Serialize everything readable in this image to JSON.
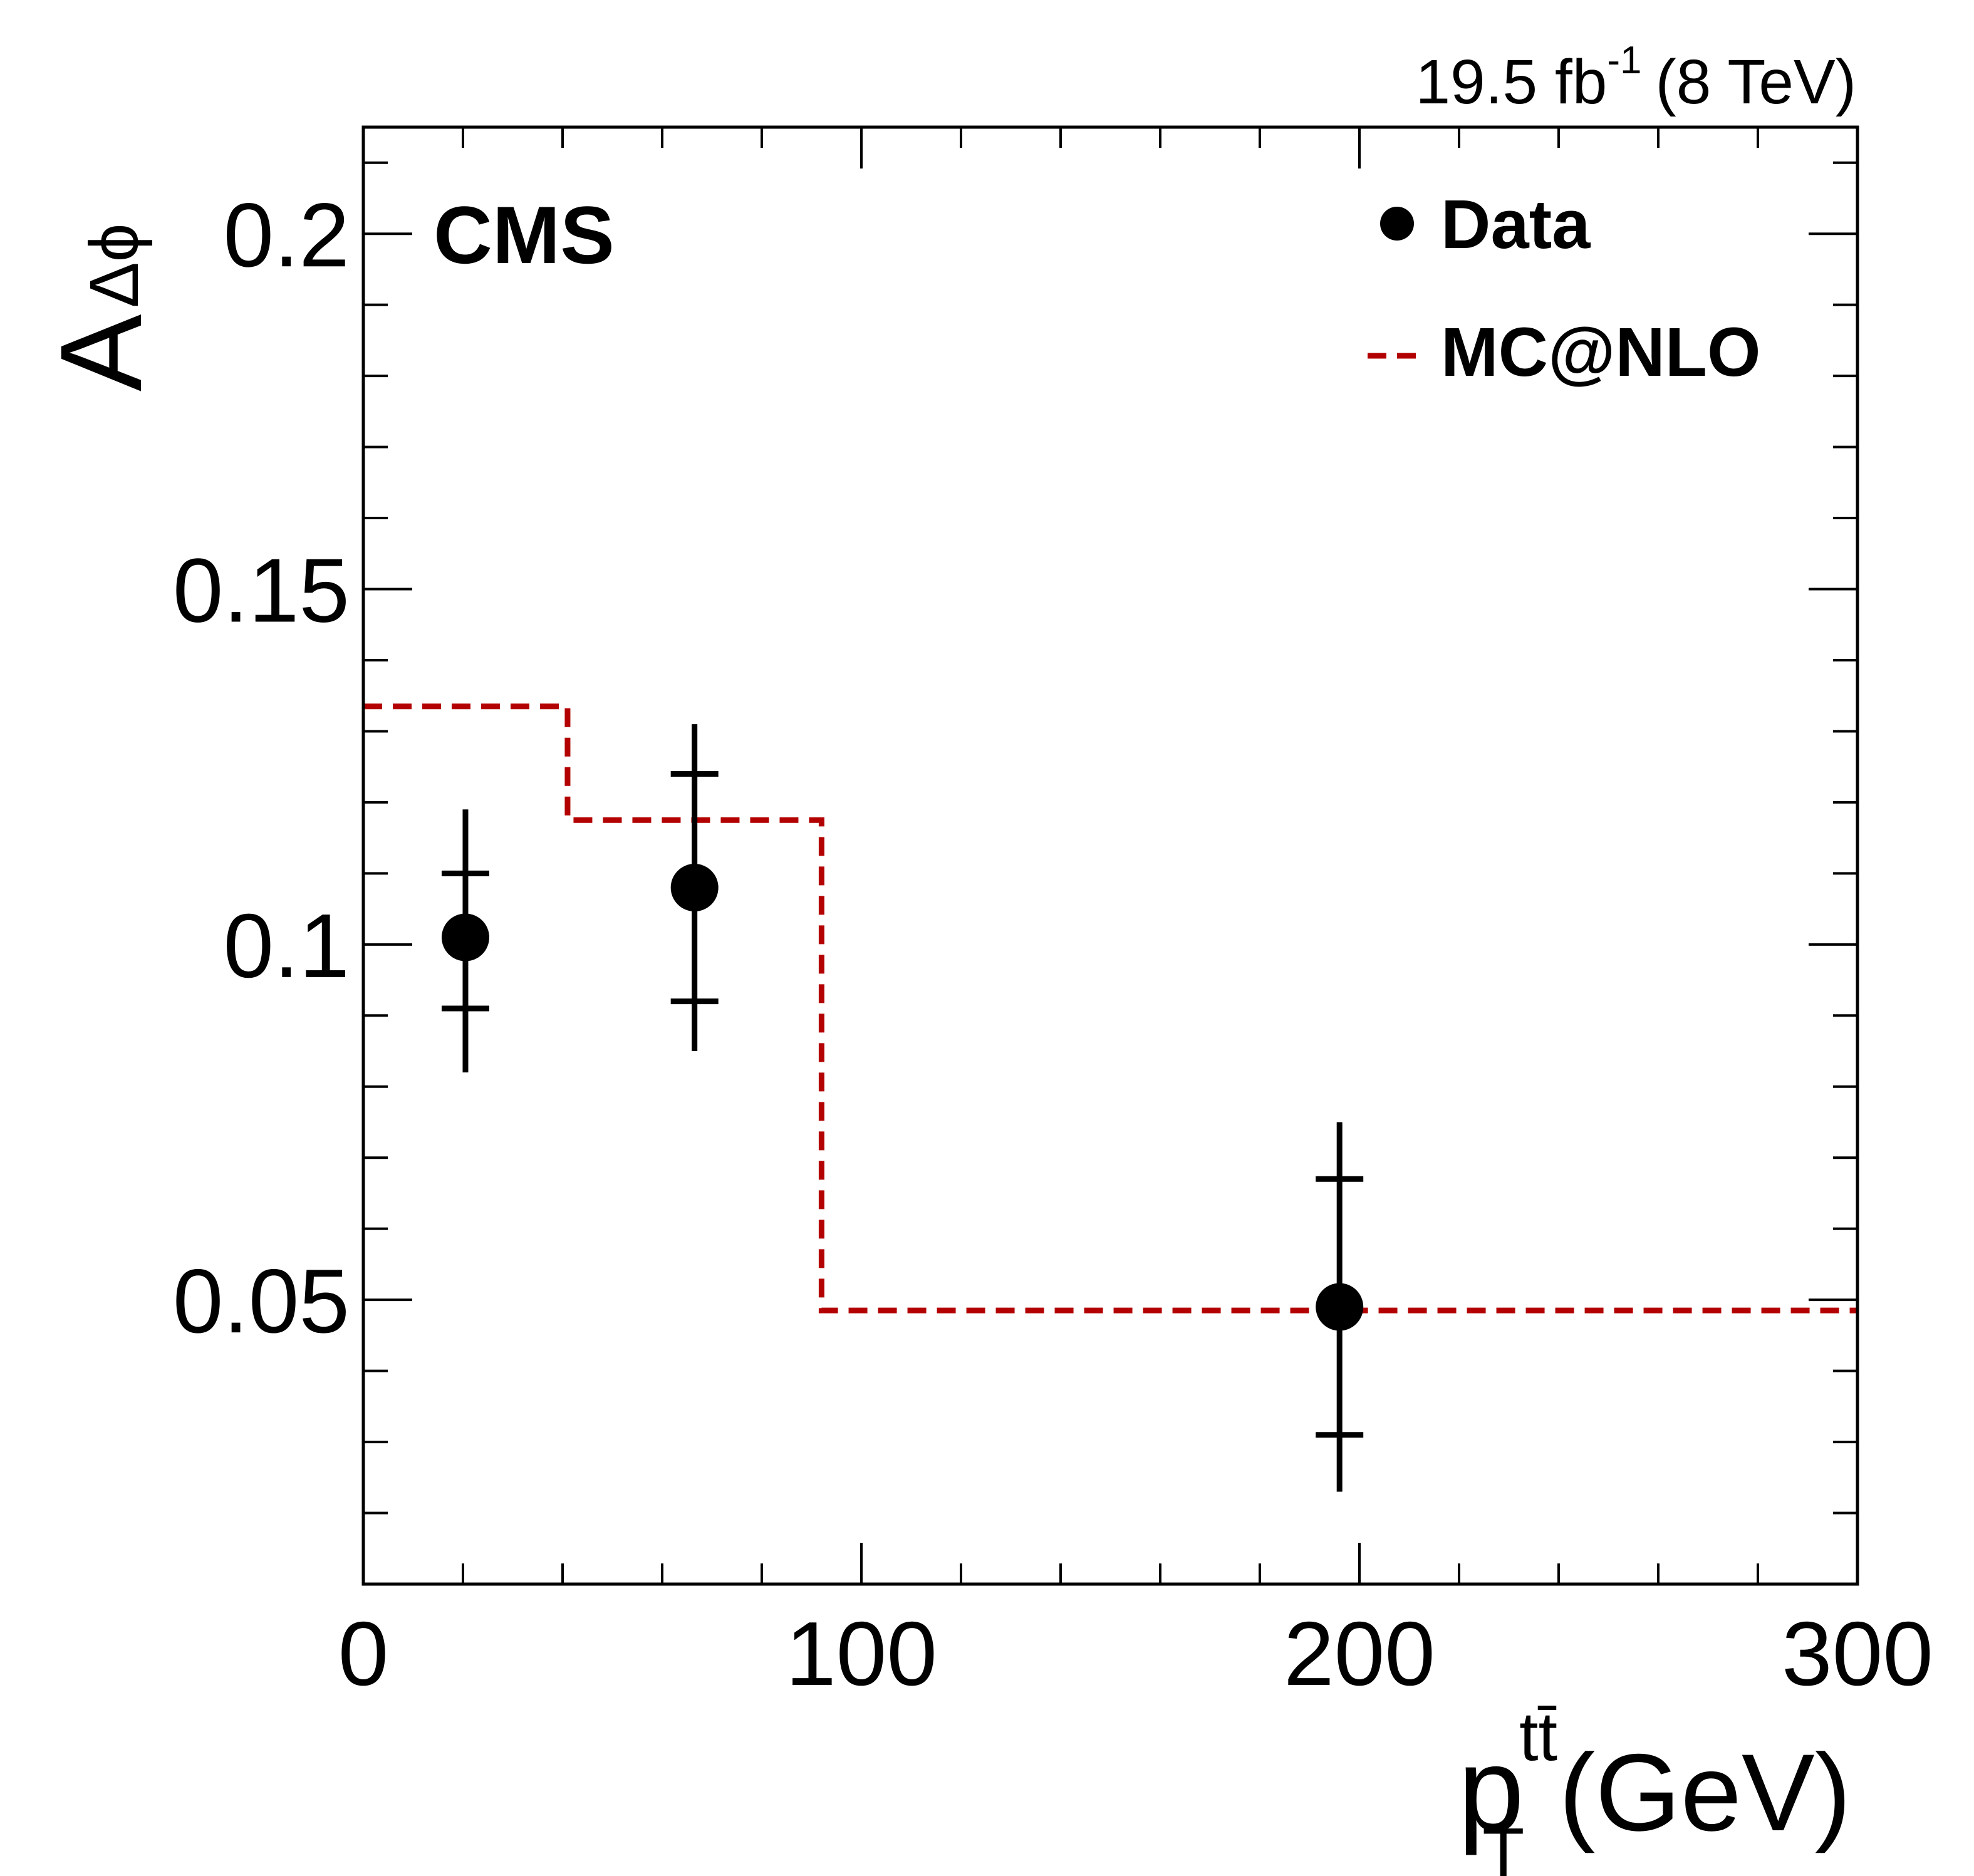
{
  "chart_data": {
    "type": "scatter",
    "xlabel": {
      "main": "p",
      "sub": "T",
      "sup": "tt̄",
      "unit": "(GeV)"
    },
    "ylabel": {
      "main": "A",
      "sub": "Δϕ"
    },
    "xlim": [
      0,
      300
    ],
    "ylim": [
      0.01,
      0.215
    ],
    "x_ticks": [
      {
        "value": 0,
        "label": "0"
      },
      {
        "value": 100,
        "label": "100"
      },
      {
        "value": 200,
        "label": "200"
      },
      {
        "value": 300,
        "label": "300"
      }
    ],
    "y_ticks": [
      {
        "value": 0.05,
        "label": "0.05"
      },
      {
        "value": 0.1,
        "label": "0.1"
      },
      {
        "value": 0.15,
        "label": "0.15"
      },
      {
        "value": 0.2,
        "label": "0.2"
      }
    ],
    "x_minor_step": 20,
    "y_minor_step": 0.01,
    "experiment": "CMS",
    "lumi": {
      "value": "19.5 fb",
      "exponent": "-1",
      "energy": "(8 TeV)"
    },
    "legend": [
      {
        "name": "Data",
        "marker": "point"
      },
      {
        "name": "MC@NLO",
        "marker": "dashed-line"
      }
    ],
    "legend_position": "top-right",
    "series": [
      {
        "name": "Data",
        "kind": "points-with-errors",
        "points": [
          {
            "x": 20.5,
            "y": 0.101,
            "stat_lo": 0.091,
            "stat_hi": 0.11,
            "tot_lo": 0.082,
            "tot_hi": 0.119
          },
          {
            "x": 66.5,
            "y": 0.108,
            "stat_lo": 0.092,
            "stat_hi": 0.124,
            "tot_lo": 0.085,
            "tot_hi": 0.131
          },
          {
            "x": 196,
            "y": 0.049,
            "stat_lo": 0.031,
            "stat_hi": 0.067,
            "tot_lo": 0.023,
            "tot_hi": 0.075
          }
        ]
      },
      {
        "name": "MC@NLO",
        "kind": "step",
        "color": "#b30000",
        "bins": [
          {
            "lo": 0,
            "hi": 41,
            "y": 0.1335
          },
          {
            "lo": 41,
            "hi": 92,
            "y": 0.1175
          },
          {
            "lo": 92,
            "hi": 300,
            "y": 0.0485
          }
        ]
      }
    ]
  }
}
